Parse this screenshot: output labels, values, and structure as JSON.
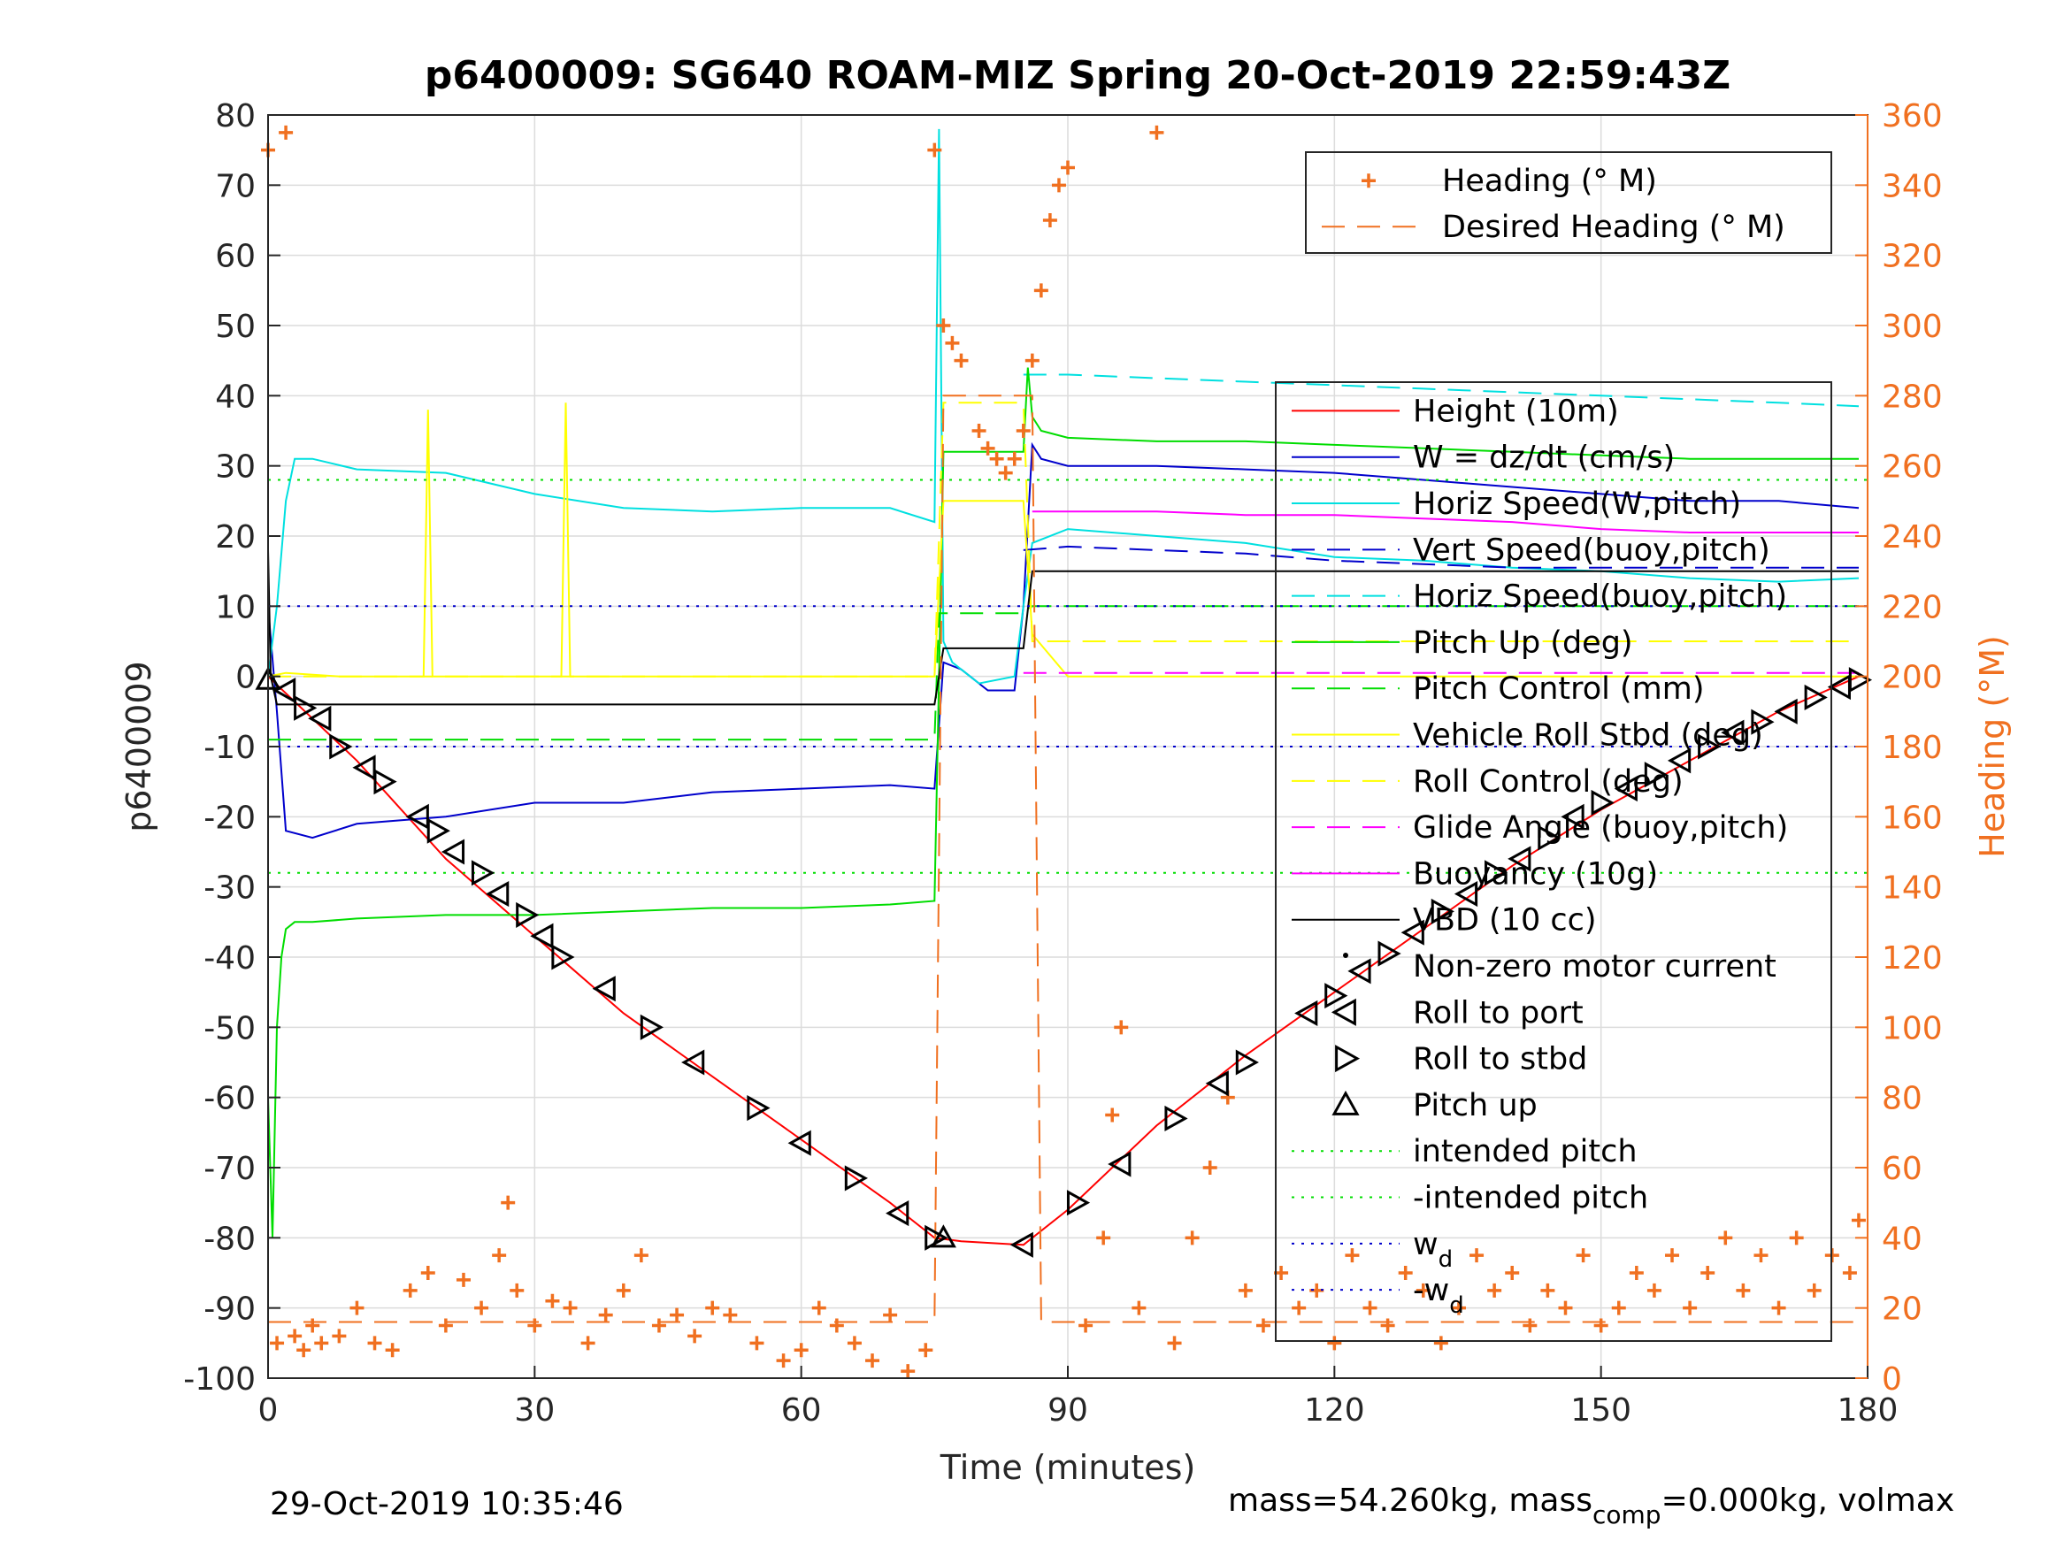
{
  "chart_data": {
    "type": "line",
    "title": "p6400009: SG640 ROAM-MIZ Spring 20-Oct-2019 22:59:43Z",
    "xlabel": "Time (minutes)",
    "ylabel": "p6400009",
    "ylabel_right": "Heading (°M)",
    "xlim": [
      0,
      180
    ],
    "ylim": [
      -100,
      80
    ],
    "ylim_right": [
      0,
      360
    ],
    "x_ticks": [
      0,
      30,
      60,
      90,
      120,
      150,
      180
    ],
    "y_ticks": [
      80,
      70,
      60,
      50,
      40,
      30,
      20,
      10,
      0,
      -10,
      -20,
      -30,
      -40,
      -50,
      -60,
      -70,
      -80,
      -90,
      -100
    ],
    "y_right_ticks": [
      360,
      340,
      320,
      300,
      280,
      260,
      240,
      220,
      200,
      180,
      160,
      140,
      120,
      100,
      80,
      60,
      40,
      20,
      0
    ],
    "grid": true,
    "footer_left": "29-Oct-2019 10:35:46",
    "footer_right": "mass=54.260kg, mass",
    "footer_right_sub": "comp",
    "footer_right_tail": "=0.000kg, volmax",
    "legend_heading": [
      {
        "label": "Heading (° M)",
        "color": "#f07020",
        "style": "marker-plus"
      },
      {
        "label": "Desired Heading (° M)",
        "color": "#f07020",
        "style": "dashed"
      }
    ],
    "legend_main": [
      {
        "label": "Height (10m)",
        "color": "#ff0000",
        "style": "solid"
      },
      {
        "label": "W = dz/dt (cm/s)",
        "color": "#0000cc",
        "style": "solid"
      },
      {
        "label": "Horiz Speed(W,pitch)",
        "color": "#00e0e0",
        "style": "solid"
      },
      {
        "label": "Vert Speed(buoy,pitch)",
        "color": "#0000cc",
        "style": "dashed"
      },
      {
        "label": "Horiz Speed(buoy,pitch)",
        "color": "#00e0e0",
        "style": "dashed"
      },
      {
        "label": "Pitch Up (deg)",
        "color": "#00dd00",
        "style": "solid"
      },
      {
        "label": "Pitch Control (mm)",
        "color": "#00dd00",
        "style": "dashed"
      },
      {
        "label": "Vehicle Roll Stbd (deg)",
        "color": "#ffff00",
        "style": "solid"
      },
      {
        "label": "Roll Control (deg)",
        "color": "#ffff00",
        "style": "dashed"
      },
      {
        "label": "Glide Angle (buoy,pitch)",
        "color": "#ff00ff",
        "style": "dashed"
      },
      {
        "label": "Buoyancy (10g)",
        "color": "#ff00ff",
        "style": "solid"
      },
      {
        "label": "VBD (10 cc)",
        "color": "#000000",
        "style": "solid"
      },
      {
        "label": "Non-zero motor current",
        "color": "#000000",
        "style": "marker-dot"
      },
      {
        "label": "Roll to port",
        "color": "#000000",
        "style": "marker-tri-left"
      },
      {
        "label": "Roll to stbd",
        "color": "#000000",
        "style": "marker-tri-right"
      },
      {
        "label": "Pitch up",
        "color": "#000000",
        "style": "marker-tri-up"
      },
      {
        "label": "intended pitch",
        "color": "#00dd00",
        "style": "dotted"
      },
      {
        "label": "-intended pitch",
        "color": "#00dd00",
        "style": "dotted"
      },
      {
        "label": "w",
        "sub": "d",
        "color": "#0000cc",
        "style": "dotted"
      },
      {
        "label": "-w",
        "sub": "d",
        "color": "#0000cc",
        "style": "dotted"
      }
    ],
    "series": [
      {
        "name": "Height (10m)",
        "color": "#ff0000",
        "axis": "left",
        "x": [
          0,
          10,
          20,
          30,
          40,
          50,
          60,
          70,
          75,
          78,
          85,
          90,
          100,
          110,
          120,
          130,
          140,
          150,
          160,
          170,
          179
        ],
        "y": [
          0,
          -12,
          -26,
          -37,
          -48,
          -57,
          -66,
          -75,
          -80,
          -80.5,
          -81,
          -76,
          -64,
          -54,
          -45,
          -36,
          -27,
          -19,
          -12,
          -5,
          0
        ]
      },
      {
        "name": "W = dz/dt (cm/s)",
        "color": "#0000cc",
        "axis": "left",
        "x": [
          0,
          1,
          2,
          5,
          10,
          20,
          30,
          40,
          50,
          60,
          70,
          75,
          76,
          78,
          81,
          84,
          85,
          86,
          87,
          90,
          100,
          110,
          120,
          130,
          140,
          150,
          160,
          170,
          179
        ],
        "y": [
          10,
          -5,
          -22,
          -23,
          -21,
          -20,
          -18,
          -18,
          -16.5,
          -16,
          -15.5,
          -16,
          2,
          1,
          -2,
          -2,
          10,
          33,
          31,
          30,
          30,
          29.5,
          29,
          28,
          27,
          26,
          25,
          25,
          24
        ]
      },
      {
        "name": "Horiz Speed(W,pitch)",
        "color": "#00e0e0",
        "axis": "left",
        "x": [
          0,
          1,
          2,
          3,
          5,
          10,
          20,
          30,
          40,
          50,
          60,
          70,
          75,
          75.5,
          76,
          77,
          80,
          84,
          85,
          86,
          90,
          100,
          110,
          120,
          130,
          140,
          150,
          160,
          170,
          179
        ],
        "y": [
          0,
          10,
          25,
          31,
          31,
          29.5,
          29,
          26,
          24,
          23.5,
          24,
          24,
          22,
          78,
          5,
          2,
          -1,
          0,
          10,
          19,
          21,
          20,
          19,
          17,
          16.5,
          15.5,
          15,
          14,
          13.5,
          14
        ]
      },
      {
        "name": "Vert Speed(buoy,pitch)",
        "color": "#0000cc",
        "axis": "left",
        "dashed": true,
        "x": [
          85,
          90,
          100,
          110,
          120,
          130,
          140,
          150,
          160,
          170,
          179
        ],
        "y": [
          18,
          18.5,
          18,
          17.5,
          16.5,
          16,
          15.5,
          15.5,
          15.5,
          15.5,
          15.5
        ]
      },
      {
        "name": "Horiz Speed(buoy,pitch)",
        "color": "#00e0e0",
        "axis": "left",
        "dashed": true,
        "x": [
          85,
          90,
          100,
          110,
          120,
          130,
          140,
          150,
          160,
          170,
          179
        ],
        "y": [
          43,
          43,
          42.5,
          42,
          41.5,
          41,
          40.5,
          40,
          39.5,
          39,
          38.5
        ]
      },
      {
        "name": "Pitch Up (deg)",
        "color": "#00dd00",
        "axis": "left",
        "x": [
          0,
          0.5,
          1,
          1.5,
          2,
          3,
          5,
          10,
          20,
          30,
          40,
          50,
          60,
          70,
          75,
          75.5,
          76,
          78,
          84,
          85,
          85.5,
          86,
          87,
          90,
          100,
          110,
          120,
          130,
          140,
          150,
          160,
          170,
          179
        ],
        "y": [
          -60,
          -80,
          -50,
          -40,
          -36,
          -35,
          -35,
          -34.5,
          -34,
          -34,
          -33.5,
          -33,
          -33,
          -32.5,
          -32,
          0,
          32,
          32,
          32,
          32,
          44,
          37,
          35,
          34,
          33.5,
          33.5,
          33,
          32.5,
          32,
          31.5,
          31,
          31,
          31
        ]
      },
      {
        "name": "Pitch Control (mm)",
        "color": "#00dd00",
        "axis": "left",
        "dashed": true,
        "x": [
          0,
          75,
          75.5,
          85,
          86,
          179
        ],
        "y": [
          -9,
          -9,
          9,
          9,
          10,
          10
        ]
      },
      {
        "name": "Vehicle Roll Stbd (deg)",
        "color": "#ffff00",
        "axis": "left",
        "x": [
          0,
          2,
          8,
          14,
          17.5,
          18,
          18.5,
          25,
          30,
          33,
          33.5,
          34,
          40,
          50,
          60,
          70,
          75,
          76,
          77,
          85,
          86,
          90,
          100,
          110,
          120,
          130,
          140,
          150,
          160,
          170,
          179
        ],
        "y": [
          0,
          0.5,
          0,
          0,
          0,
          38,
          0,
          0,
          0,
          0,
          39,
          0,
          0,
          0,
          0,
          0,
          0,
          25,
          25,
          25,
          6,
          0,
          0,
          0,
          0,
          0,
          0,
          0,
          0,
          0,
          0
        ]
      },
      {
        "name": "Roll Control (deg)",
        "color": "#ffff00",
        "axis": "left",
        "dashed": true,
        "x": [
          0,
          75,
          76,
          85,
          86,
          179
        ],
        "y": [
          0,
          0,
          39,
          39,
          5,
          5
        ]
      },
      {
        "name": "Glide Angle (buoy,pitch)",
        "color": "#ff00ff",
        "axis": "left",
        "dashed": true,
        "x": [
          85,
          179
        ],
        "y": [
          0.5,
          0.5
        ]
      },
      {
        "name": "Buoyancy (10g)",
        "color": "#ff00ff",
        "axis": "left",
        "x": [
          86,
          90,
          100,
          110,
          120,
          130,
          140,
          150,
          160,
          170,
          179
        ],
        "y": [
          23.5,
          23.5,
          23.5,
          23,
          23,
          22.5,
          22,
          21,
          20.5,
          20.5,
          20.5
        ]
      },
      {
        "name": "VBD (10 cc)",
        "color": "#000000",
        "axis": "left",
        "x": [
          0,
          0.3,
          1,
          2,
          75,
          76,
          84,
          85,
          86,
          179
        ],
        "y": [
          18,
          0,
          -4,
          -4,
          -4,
          4,
          4,
          4,
          15,
          15
        ]
      },
      {
        "name": "intended pitch",
        "color": "#00dd00",
        "axis": "left",
        "dotted": true,
        "x": [
          0,
          180
        ],
        "y": [
          28,
          28
        ]
      },
      {
        "name": "-intended pitch",
        "color": "#00dd00",
        "axis": "left",
        "dotted": true,
        "x": [
          0,
          180
        ],
        "y": [
          -28,
          -28
        ]
      },
      {
        "name": "w_d",
        "color": "#0000cc",
        "axis": "left",
        "dotted": true,
        "x": [
          0,
          180
        ],
        "y": [
          10,
          10
        ]
      },
      {
        "name": "-w_d",
        "color": "#0000cc",
        "axis": "left",
        "dotted": true,
        "x": [
          0,
          180
        ],
        "y": [
          -10,
          -10
        ]
      },
      {
        "name": "Desired Heading (° M)",
        "color": "#f07020",
        "axis": "right",
        "dashed": true,
        "x": [
          0,
          75,
          76,
          86,
          87,
          179
        ],
        "y": [
          16,
          16,
          280,
          280,
          16,
          16
        ]
      }
    ],
    "heading_markers": {
      "name": "Heading (° M)",
      "color": "#f07020",
      "axis": "right",
      "x": [
        0,
        1,
        2,
        3,
        4,
        5,
        6,
        8,
        10,
        12,
        14,
        16,
        18,
        20,
        22,
        24,
        26,
        27,
        28,
        30,
        32,
        34,
        36,
        38,
        40,
        42,
        44,
        46,
        48,
        50,
        52,
        55,
        58,
        60,
        62,
        64,
        66,
        68,
        70,
        72,
        74,
        75,
        76,
        77,
        78,
        80,
        81,
        82,
        83,
        84,
        85,
        86,
        87,
        88,
        89,
        90,
        92,
        94,
        95,
        96,
        98,
        100,
        102,
        104,
        106,
        108,
        110,
        112,
        114,
        116,
        118,
        120,
        122,
        124,
        126,
        128,
        130,
        132,
        134,
        136,
        138,
        140,
        142,
        144,
        146,
        148,
        150,
        152,
        154,
        156,
        158,
        160,
        162,
        164,
        166,
        168,
        170,
        172,
        174,
        176,
        178,
        179
      ],
      "y": [
        350,
        10,
        355,
        12,
        8,
        15,
        10,
        12,
        20,
        10,
        8,
        25,
        30,
        15,
        28,
        20,
        35,
        50,
        25,
        15,
        22,
        20,
        10,
        18,
        25,
        35,
        15,
        18,
        12,
        20,
        18,
        10,
        5,
        8,
        20,
        15,
        10,
        5,
        18,
        2,
        8,
        350,
        300,
        295,
        290,
        270,
        265,
        262,
        258,
        262,
        270,
        290,
        310,
        330,
        340,
        345,
        15,
        40,
        75,
        100,
        20,
        355,
        10,
        40,
        60,
        80,
        25,
        15,
        30,
        20,
        25,
        10,
        35,
        20,
        15,
        30,
        25,
        10,
        20,
        35,
        25,
        30,
        15,
        25,
        20,
        35,
        15,
        20,
        30,
        25,
        35,
        20,
        30,
        40,
        25,
        35,
        20,
        40,
        25,
        35,
        30,
        45
      ]
    },
    "dive_markers": {
      "x": [
        0,
        2,
        4,
        6,
        8,
        11,
        13,
        17,
        19,
        21,
        24,
        26,
        29,
        31,
        33,
        38,
        43,
        48,
        55,
        60,
        66,
        71,
        75,
        76,
        85,
        91,
        96,
        102,
        107,
        110,
        117,
        120,
        123,
        126,
        129,
        132,
        135,
        138,
        141,
        144,
        147,
        150,
        153,
        156,
        159,
        162,
        165,
        168,
        171,
        174,
        177,
        179
      ],
      "y": [
        -0.5,
        -2,
        -4.5,
        -6,
        -10,
        -13,
        -15,
        -20,
        -22,
        -25,
        -28,
        -31,
        -34,
        -37,
        -40,
        -44.5,
        -50,
        -55,
        -61.5,
        -66.5,
        -71.5,
        -76.5,
        -80,
        -80,
        -81,
        -75,
        -69.5,
        -63,
        -58,
        -55,
        -48,
        -45.5,
        -42,
        -39.5,
        -36.5,
        -33.5,
        -31,
        -28,
        -26,
        -23,
        -20,
        -18,
        -16,
        -14,
        -12,
        -10,
        -8,
        -6.5,
        -5,
        -3,
        -1.5,
        -0.5
      ],
      "kind": [
        "tri-up",
        "tri-left",
        "tri-right",
        "tri-left",
        "tri-right",
        "tri-left",
        "tri-right",
        "tri-left",
        "tri-right",
        "tri-left",
        "tri-right",
        "tri-left",
        "tri-right",
        "tri-left",
        "tri-right",
        "tri-left",
        "tri-right",
        "tri-left",
        "tri-right",
        "tri-left",
        "tri-right",
        "tri-left",
        "tri-right",
        "tri-up",
        "tri-left",
        "tri-right",
        "tri-left",
        "tri-right",
        "tri-left",
        "tri-right",
        "tri-left",
        "tri-right",
        "tri-left",
        "tri-right",
        "tri-left",
        "tri-right",
        "tri-left",
        "tri-right",
        "tri-left",
        "tri-right",
        "tri-left",
        "tri-right",
        "tri-left",
        "tri-right",
        "tri-left",
        "tri-right",
        "tri-left",
        "tri-right",
        "tri-left",
        "tri-right",
        "tri-left",
        "tri-right"
      ]
    }
  }
}
